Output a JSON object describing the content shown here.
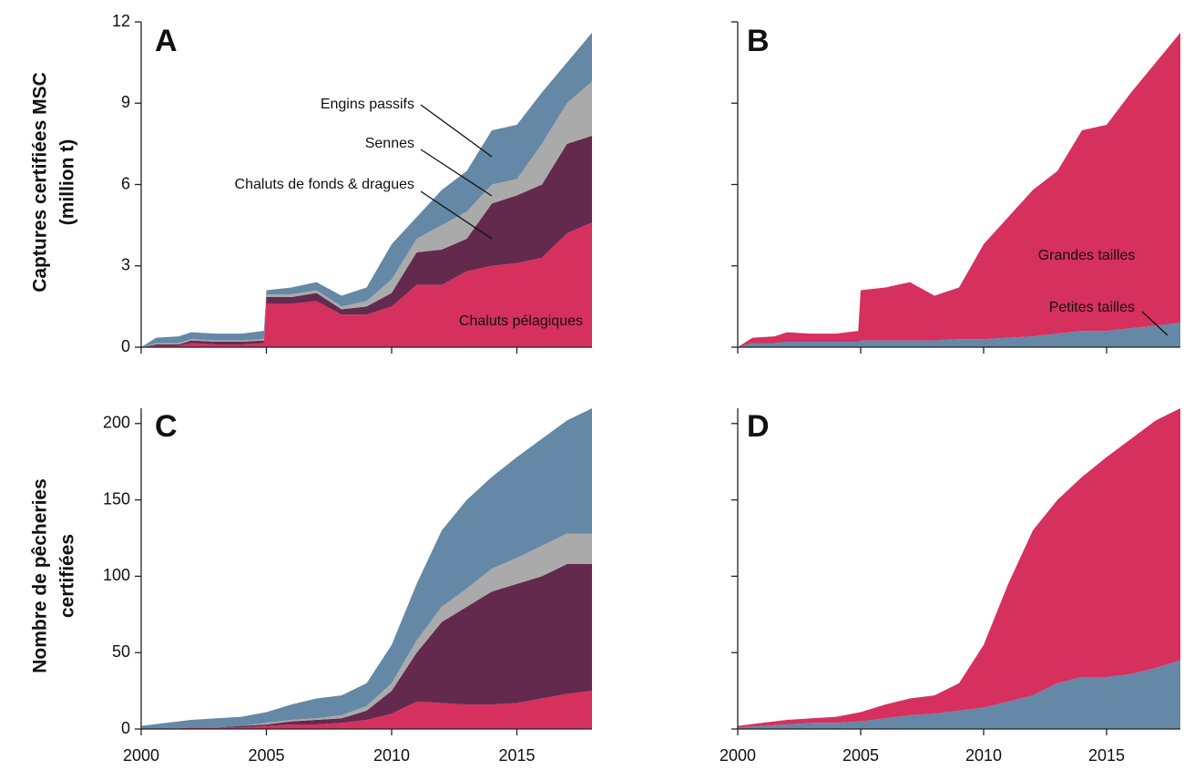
{
  "chart_data": [
    {
      "type": "stacked_area",
      "panel_label": "A",
      "ylabel": [
        "Captures certifiées MSC",
        "(million t)"
      ],
      "x": [
        2000,
        2000.6,
        2001.5,
        2002,
        2003,
        2004,
        2004.9,
        2005,
        2006,
        2007,
        2008,
        2009,
        2010,
        2011,
        2012,
        2013,
        2014,
        2015,
        2016,
        2017,
        2018
      ],
      "series": [
        {
          "name": "Chaluts pélagiques",
          "color": "#d6305f",
          "values": [
            0,
            0.05,
            0.05,
            0.15,
            0.1,
            0.1,
            0.15,
            1.6,
            1.6,
            1.7,
            1.2,
            1.2,
            1.5,
            2.3,
            2.3,
            2.8,
            3.0,
            3.1,
            3.3,
            4.2,
            4.6
          ]
        },
        {
          "name": "Chaluts de fonds & dragues",
          "color": "#632a4e",
          "values": [
            0,
            0.05,
            0.05,
            0.1,
            0.1,
            0.1,
            0.1,
            0.25,
            0.25,
            0.3,
            0.2,
            0.3,
            0.5,
            1.2,
            1.3,
            1.2,
            2.3,
            2.5,
            2.7,
            3.3,
            3.2
          ]
        },
        {
          "name": "Sennes",
          "color": "#aaaaaa",
          "values": [
            0,
            0.05,
            0.05,
            0.05,
            0.05,
            0.05,
            0.05,
            0.1,
            0.1,
            0.1,
            0.1,
            0.2,
            0.5,
            0.5,
            0.9,
            1.0,
            0.7,
            0.6,
            1.5,
            1.5,
            2.0
          ]
        },
        {
          "name": "Engins passifs",
          "color": "#6588a6",
          "values": [
            0,
            0.2,
            0.25,
            0.25,
            0.25,
            0.25,
            0.3,
            0.15,
            0.25,
            0.3,
            0.4,
            0.5,
            1.3,
            0.8,
            1.3,
            1.5,
            2.0,
            2.0,
            1.9,
            1.5,
            1.8
          ]
        }
      ],
      "xlim": [
        2000,
        2018
      ],
      "xticks": [
        2000,
        2005,
        2010,
        2015
      ],
      "xtick_labels": false,
      "ylim": [
        0,
        12
      ],
      "yticks": [
        0,
        3,
        6,
        9,
        12
      ],
      "ytick_labels": true
    },
    {
      "type": "stacked_area",
      "panel_label": "B",
      "x": [
        2000,
        2000.6,
        2001.5,
        2002,
        2003,
        2004,
        2004.9,
        2005,
        2006,
        2007,
        2008,
        2009,
        2010,
        2011,
        2012,
        2013,
        2014,
        2015,
        2016,
        2017,
        2018
      ],
      "series": [
        {
          "name": "Petites tailles",
          "color": "#6588a6",
          "values": [
            0,
            0.15,
            0.15,
            0.2,
            0.2,
            0.2,
            0.2,
            0.25,
            0.25,
            0.25,
            0.25,
            0.3,
            0.3,
            0.35,
            0.4,
            0.5,
            0.6,
            0.6,
            0.7,
            0.8,
            0.9
          ]
        },
        {
          "name": "Grandes tailles",
          "color": "#d6305f",
          "values": [
            0,
            0.2,
            0.25,
            0.35,
            0.3,
            0.3,
            0.4,
            1.85,
            1.95,
            2.15,
            1.65,
            1.9,
            3.5,
            4.45,
            5.4,
            6.0,
            7.4,
            7.6,
            8.7,
            9.7,
            10.7
          ]
        }
      ],
      "xlim": [
        2000,
        2018
      ],
      "xticks": [
        2000,
        2005,
        2010,
        2015
      ],
      "xtick_labels": false,
      "ylim": [
        0,
        12
      ],
      "yticks": [
        0,
        3,
        6,
        9,
        12
      ],
      "ytick_labels": false
    },
    {
      "type": "stacked_area",
      "panel_label": "C",
      "ylabel": [
        "Nombre de pêcheries",
        "certifiées"
      ],
      "x": [
        2000,
        2001,
        2002,
        2003,
        2004,
        2005,
        2006,
        2007,
        2008,
        2009,
        2010,
        2011,
        2012,
        2013,
        2014,
        2015,
        2016,
        2017,
        2018
      ],
      "series": [
        {
          "name": "Chaluts pélagiques",
          "color": "#d6305f",
          "values": [
            0,
            0,
            1,
            1,
            1,
            2,
            3,
            3,
            4,
            6,
            10,
            18,
            17,
            16,
            16,
            17,
            20,
            23,
            25
          ]
        },
        {
          "name": "Chaluts de fonds & dragues",
          "color": "#632a4e",
          "values": [
            0,
            0,
            0,
            0,
            1,
            1,
            2,
            3,
            3,
            6,
            15,
            32,
            53,
            64,
            74,
            78,
            80,
            85,
            83
          ]
        },
        {
          "name": "Sennes",
          "color": "#aaaaaa",
          "values": [
            0,
            0,
            0,
            0,
            0,
            1,
            1,
            1,
            2,
            3,
            5,
            8,
            10,
            12,
            15,
            17,
            20,
            20,
            20
          ]
        },
        {
          "name": "Engins passifs",
          "color": "#6588a6",
          "values": [
            2,
            4,
            5,
            6,
            6,
            7,
            10,
            13,
            13,
            15,
            25,
            37,
            50,
            58,
            60,
            66,
            70,
            74,
            82
          ]
        }
      ],
      "xlim": [
        2000,
        2018
      ],
      "xticks": [
        2000,
        2005,
        2010,
        2015
      ],
      "xtick_labels": true,
      "ylim": [
        0,
        210
      ],
      "yticks": [
        0,
        50,
        100,
        150,
        200
      ],
      "ytick_labels": true
    },
    {
      "type": "stacked_area",
      "panel_label": "D",
      "x": [
        2000,
        2001,
        2002,
        2003,
        2004,
        2005,
        2006,
        2007,
        2008,
        2009,
        2010,
        2011,
        2012,
        2013,
        2014,
        2015,
        2016,
        2017,
        2018
      ],
      "series": [
        {
          "name": "Petites tailles",
          "color": "#6588a6",
          "values": [
            1,
            2,
            3,
            4,
            4,
            5,
            7,
            9,
            10,
            12,
            14,
            18,
            22,
            30,
            34,
            34,
            36,
            40,
            45
          ]
        },
        {
          "name": "Grandes tailles",
          "color": "#d6305f",
          "values": [
            1,
            2,
            3,
            3,
            4,
            6,
            9,
            11,
            12,
            18,
            41,
            77,
            108,
            120,
            131,
            144,
            154,
            162,
            165
          ]
        }
      ],
      "xlim": [
        2000,
        2018
      ],
      "xticks": [
        2000,
        2005,
        2010,
        2015
      ],
      "xtick_labels": true,
      "ylim": [
        0,
        210
      ],
      "yticks": [
        0,
        50,
        100,
        150,
        200
      ],
      "ytick_labels": false
    }
  ]
}
